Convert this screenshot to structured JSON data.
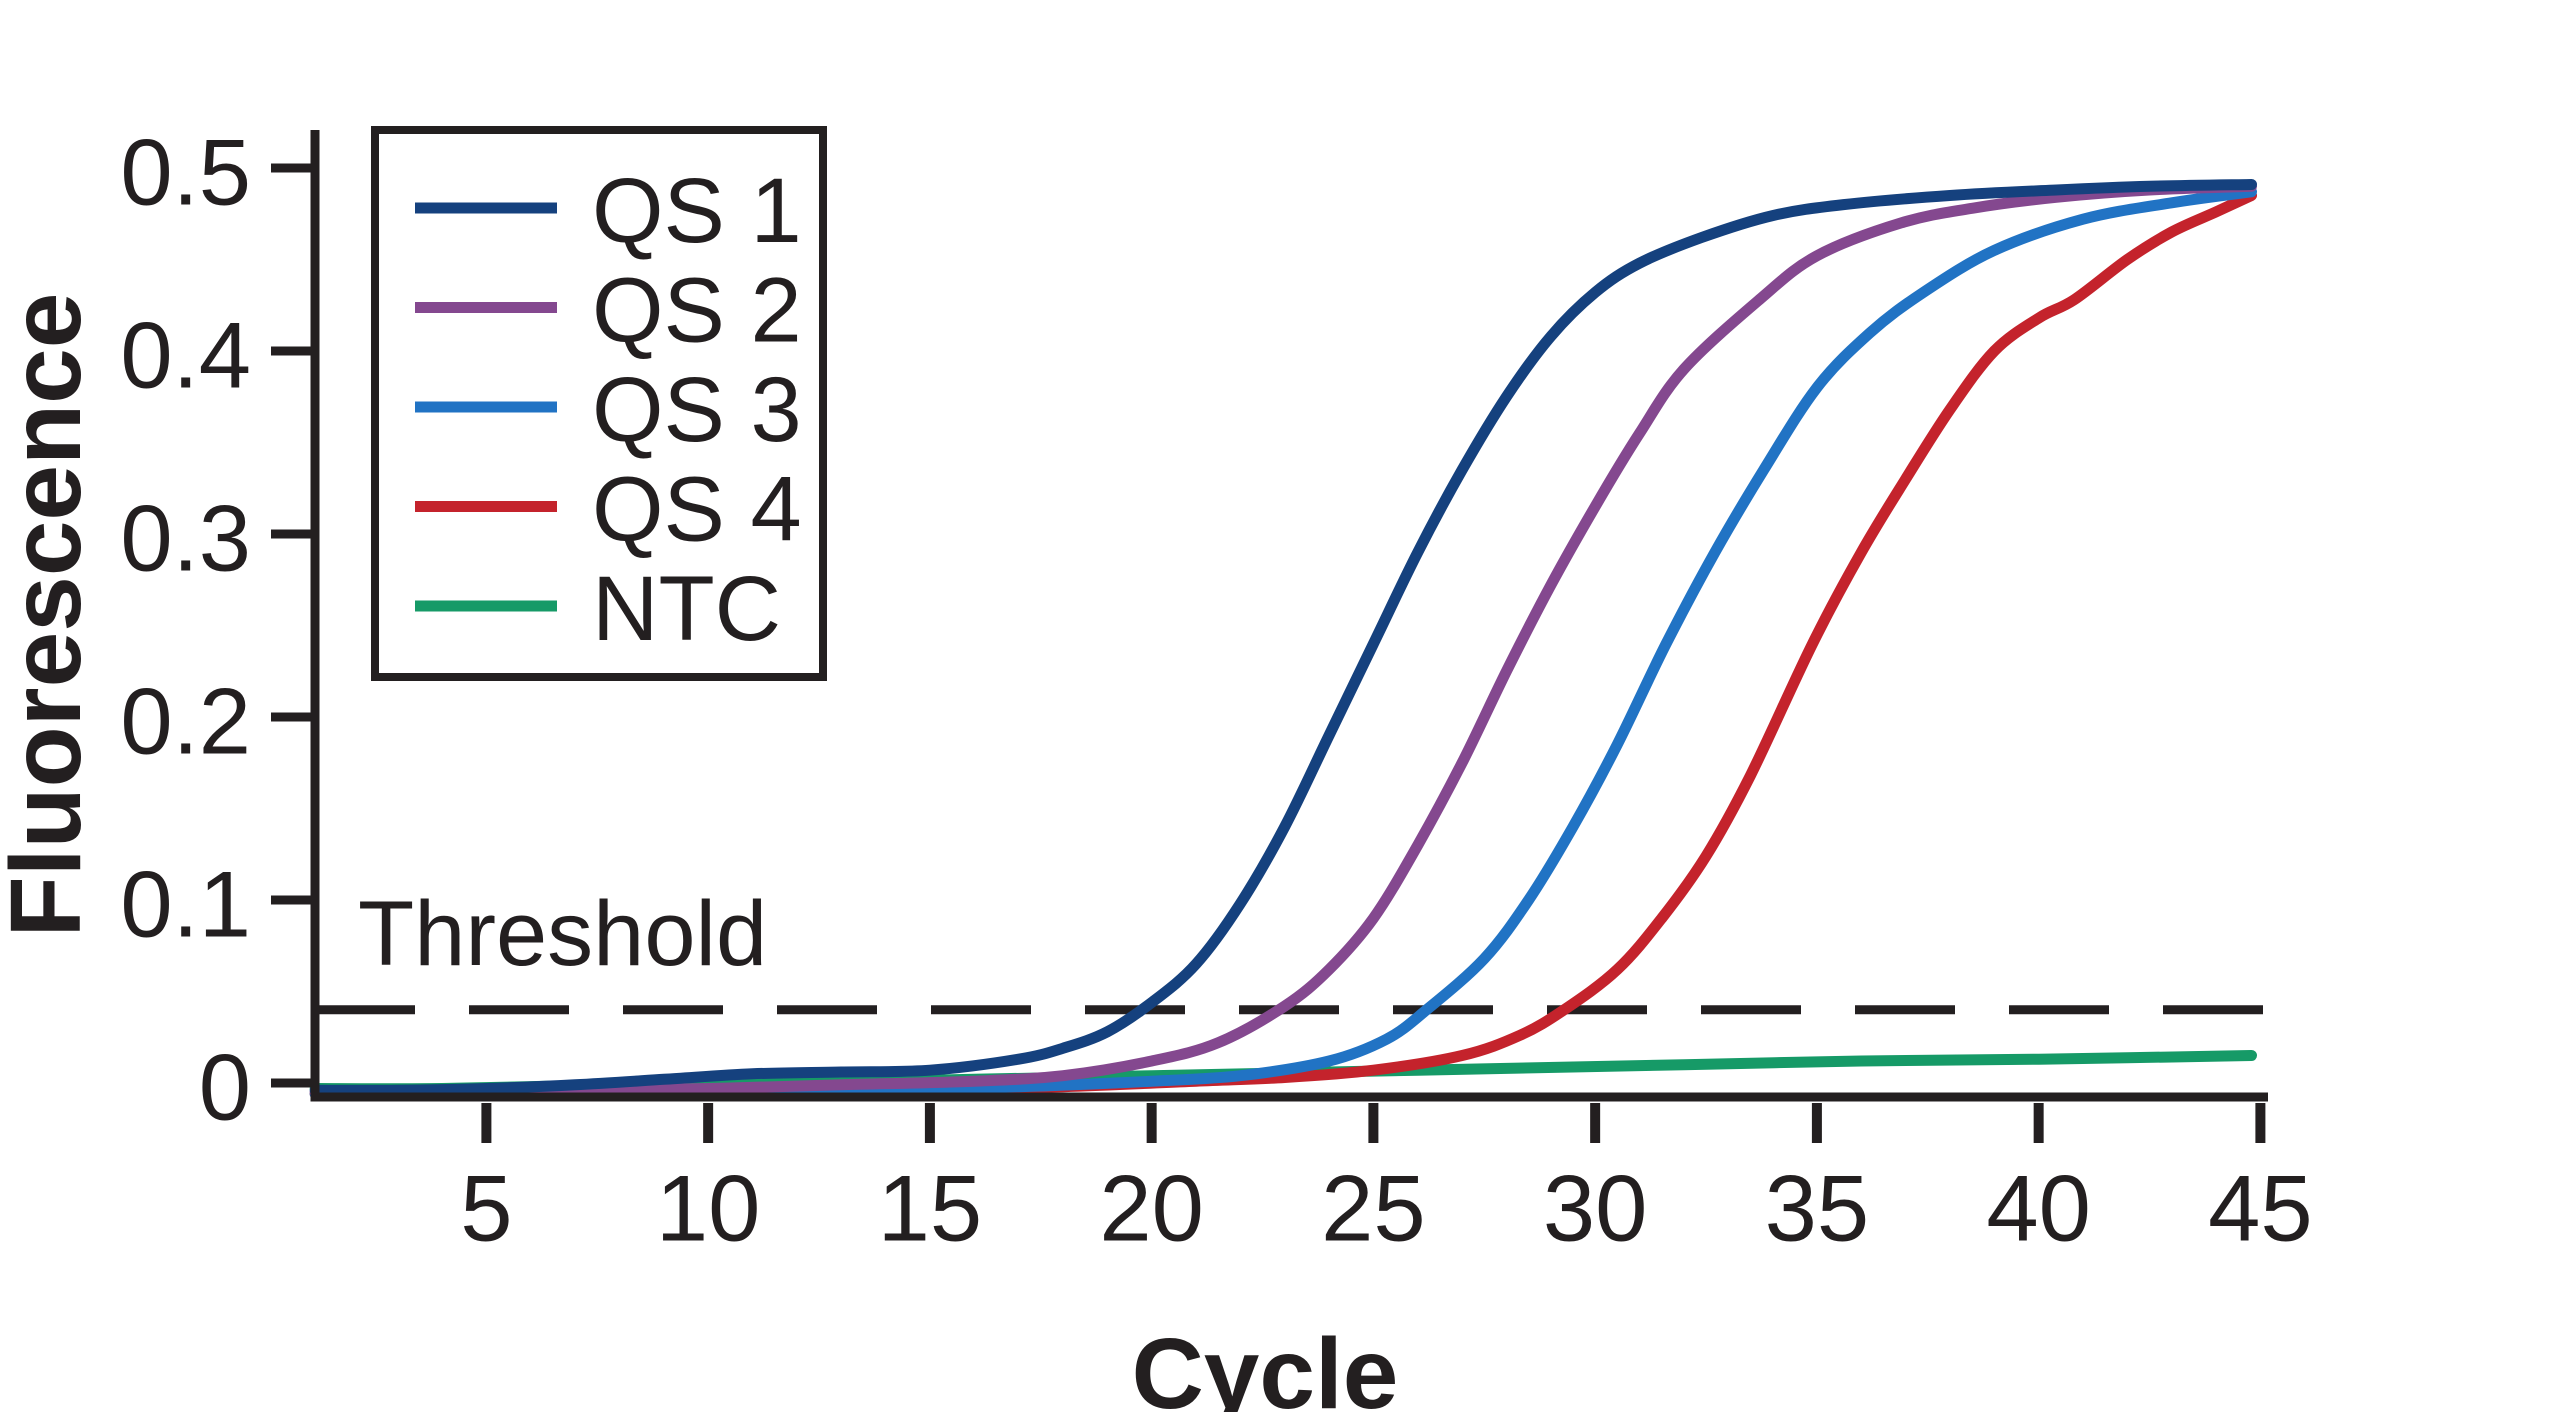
{
  "figure": {
    "background": "#ffffff",
    "ink_color": "#231f20"
  },
  "chart_data": {
    "type": "line",
    "title": "",
    "xlabel": "Cycle",
    "ylabel": "Fluorescence",
    "xlim": [
      1.14,
      45.2
    ],
    "ylim": [
      -0.012,
      0.52
    ],
    "grid": false,
    "legend_position": "top-left",
    "xticks": [
      5,
      10,
      15,
      20,
      25,
      30,
      35,
      40,
      45
    ],
    "xtick_labels": [
      "5",
      "10",
      "15",
      "20",
      "25",
      "30",
      "35",
      "40",
      "45"
    ],
    "yticks": [
      0,
      0.1,
      0.2,
      0.3,
      0.4,
      0.5
    ],
    "ytick_labels": [
      "0",
      "0.1",
      "0.2",
      "0.3",
      "0.4",
      "0.5"
    ],
    "threshold": {
      "label": "Threshold",
      "value": 0.04,
      "style": "dashed",
      "color": "#231f20"
    },
    "series": [
      {
        "name": "QS 1",
        "color": "#15417e",
        "threshold_crossing_cycle": 19.8,
        "points": [
          [
            1.14,
            -0.004
          ],
          [
            3,
            -0.004
          ],
          [
            5,
            -0.003
          ],
          [
            7,
            -0.001
          ],
          [
            9,
            0.002
          ],
          [
            11,
            0.005
          ],
          [
            13,
            0.006
          ],
          [
            15,
            0.007
          ],
          [
            17,
            0.013
          ],
          [
            18,
            0.019
          ],
          [
            19,
            0.028
          ],
          [
            20,
            0.044
          ],
          [
            21,
            0.065
          ],
          [
            22,
            0.098
          ],
          [
            23,
            0.14
          ],
          [
            24,
            0.19
          ],
          [
            25,
            0.24
          ],
          [
            26,
            0.29
          ],
          [
            27,
            0.335
          ],
          [
            28,
            0.375
          ],
          [
            29,
            0.408
          ],
          [
            30,
            0.432
          ],
          [
            31,
            0.448
          ],
          [
            32.4,
            0.462
          ],
          [
            34,
            0.474
          ],
          [
            35.6,
            0.48
          ],
          [
            38,
            0.485
          ],
          [
            40.4,
            0.488
          ],
          [
            42.5,
            0.49
          ],
          [
            44.8,
            0.491
          ]
        ]
      },
      {
        "name": "QS 2",
        "color": "#84488f",
        "threshold_crossing_cycle": 23.0,
        "points": [
          [
            1.14,
            -0.005
          ],
          [
            4,
            -0.005
          ],
          [
            7,
            -0.004
          ],
          [
            10,
            -0.003
          ],
          [
            13,
            -0.001
          ],
          [
            16,
            0.001
          ],
          [
            18,
            0.004
          ],
          [
            20,
            0.012
          ],
          [
            21.5,
            0.022
          ],
          [
            23,
            0.042
          ],
          [
            24,
            0.062
          ],
          [
            25,
            0.09
          ],
          [
            26,
            0.13
          ],
          [
            27,
            0.175
          ],
          [
            28,
            0.225
          ],
          [
            29,
            0.272
          ],
          [
            30,
            0.315
          ],
          [
            31,
            0.355
          ],
          [
            32,
            0.39
          ],
          [
            33.7,
            0.428
          ],
          [
            35,
            0.452
          ],
          [
            36.9,
            0.47
          ],
          [
            38.5,
            0.478
          ],
          [
            40.4,
            0.484
          ],
          [
            42.5,
            0.488
          ],
          [
            44.8,
            0.49
          ]
        ]
      },
      {
        "name": "QS 3",
        "color": "#2173c4",
        "threshold_crossing_cycle": 25.8,
        "points": [
          [
            1.14,
            -0.006
          ],
          [
            5,
            -0.006
          ],
          [
            9,
            -0.005
          ],
          [
            13,
            -0.004
          ],
          [
            17,
            -0.002
          ],
          [
            20,
            0.001
          ],
          [
            22,
            0.004
          ],
          [
            24,
            0.012
          ],
          [
            25.3,
            0.024
          ],
          [
            26.2,
            0.04
          ],
          [
            27.5,
            0.068
          ],
          [
            28.5,
            0.1
          ],
          [
            29.5,
            0.14
          ],
          [
            30.5,
            0.185
          ],
          [
            31.6,
            0.24
          ],
          [
            32.7,
            0.29
          ],
          [
            33.8,
            0.335
          ],
          [
            35,
            0.38
          ],
          [
            36.2,
            0.41
          ],
          [
            37.4,
            0.432
          ],
          [
            39,
            0.455
          ],
          [
            41,
            0.472
          ],
          [
            43,
            0.481
          ],
          [
            44.8,
            0.487
          ]
        ]
      },
      {
        "name": "QS 4",
        "color": "#c4232c",
        "threshold_crossing_cycle": 29.3,
        "points": [
          [
            1.14,
            -0.006
          ],
          [
            5,
            -0.006
          ],
          [
            10,
            -0.005
          ],
          [
            14,
            -0.004
          ],
          [
            18,
            -0.002
          ],
          [
            21,
            0.001
          ],
          [
            23,
            0.003
          ],
          [
            25,
            0.007
          ],
          [
            27,
            0.015
          ],
          [
            28.3,
            0.026
          ],
          [
            29.3,
            0.04
          ],
          [
            30.5,
            0.062
          ],
          [
            31.5,
            0.09
          ],
          [
            32.5,
            0.124
          ],
          [
            33.5,
            0.168
          ],
          [
            34.9,
            0.24
          ],
          [
            36,
            0.29
          ],
          [
            37,
            0.33
          ],
          [
            38,
            0.368
          ],
          [
            39,
            0.4
          ],
          [
            40,
            0.418
          ],
          [
            40.8,
            0.428
          ],
          [
            42,
            0.45
          ],
          [
            43,
            0.465
          ],
          [
            44,
            0.476
          ],
          [
            44.8,
            0.485
          ]
        ]
      },
      {
        "name": "NTC",
        "color": "#169a67",
        "threshold_crossing_cycle": null,
        "points": [
          [
            1.14,
            -0.003
          ],
          [
            4,
            -0.003
          ],
          [
            8,
            -0.001
          ],
          [
            12,
            0
          ],
          [
            16,
            0.002
          ],
          [
            20,
            0.004
          ],
          [
            24,
            0.006
          ],
          [
            28,
            0.008
          ],
          [
            32,
            0.01
          ],
          [
            36,
            0.012
          ],
          [
            40,
            0.013
          ],
          [
            44.8,
            0.015
          ]
        ]
      }
    ]
  }
}
